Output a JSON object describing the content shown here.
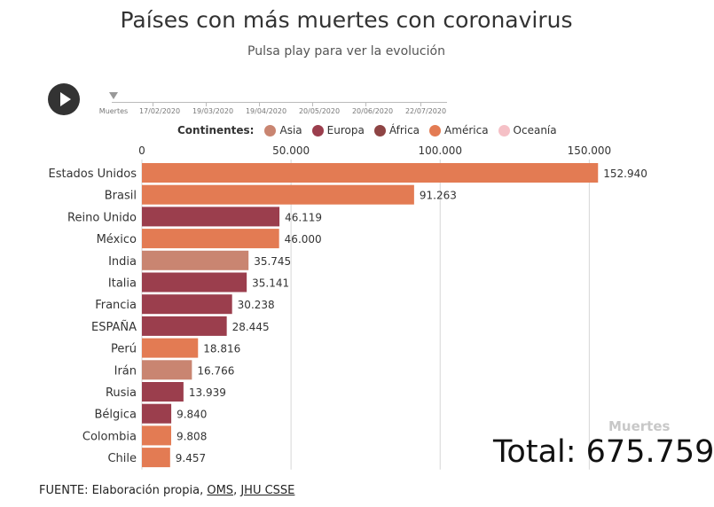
{
  "title": "Países con más muertes con coronavirus",
  "subtitle": "Pulsa play para ver la evolución",
  "player": {
    "play_icon": "play-icon",
    "timeline_labels": [
      "Muertes",
      "17/02/2020",
      "19/03/2020",
      "19/04/2020",
      "20/05/2020",
      "20/06/2020",
      "22/07/2020"
    ]
  },
  "legend": {
    "title": "Continentes:",
    "items": [
      {
        "label": "Asia",
        "color": "#c98571"
      },
      {
        "label": "Europa",
        "color": "#9b3e4d"
      },
      {
        "label": "África",
        "color": "#8e4444"
      },
      {
        "label": "América",
        "color": "#e37b53"
      },
      {
        "label": "Oceanía",
        "color": "#f5c0c6"
      }
    ]
  },
  "chart_data": {
    "type": "bar",
    "orientation": "horizontal",
    "categories": [
      "Estados Unidos",
      "Brasil",
      "Reino Unido",
      "México",
      "India",
      "Italia",
      "Francia",
      "ESPAÑA",
      "Perú",
      "Irán",
      "Rusia",
      "Bélgica",
      "Colombia",
      "Chile"
    ],
    "values": [
      152940,
      91263,
      46119,
      46000,
      35745,
      35141,
      30238,
      28445,
      18816,
      16766,
      13939,
      9840,
      9808,
      9457
    ],
    "value_labels": [
      "152.940",
      "91.263",
      "46.119",
      "46.000",
      "35.745",
      "35.141",
      "30.238",
      "28.445",
      "18.816",
      "16.766",
      "13.939",
      "9.840",
      "9.808",
      "9.457"
    ],
    "continents": [
      "América",
      "America",
      "Europa",
      "América",
      "Asia",
      "Europa",
      "Europa",
      "Europa",
      "América",
      "Asia",
      "Europa",
      "Europa",
      "América",
      "América"
    ],
    "bar_colors": [
      "#e37b53",
      "#e37b53",
      "#9b3e4d",
      "#e37b53",
      "#c98571",
      "#9b3e4d",
      "#9b3e4d",
      "#9b3e4d",
      "#e37b53",
      "#c98571",
      "#9b3e4d",
      "#9b3e4d",
      "#e37b53",
      "#e37b53"
    ],
    "x_ticks": [
      0,
      50000,
      100000,
      150000
    ],
    "x_tick_labels": [
      "0",
      "50.000",
      "100.000",
      "150.000"
    ],
    "xlim": [
      0,
      160000
    ],
    "grid": true
  },
  "watermark": "Muertes",
  "total": "Total: 675.759",
  "source": {
    "prefix": "FUENTE: Elaboración propia, ",
    "link1": "OMS",
    "sep": ", ",
    "link2": "JHU CSSE"
  }
}
